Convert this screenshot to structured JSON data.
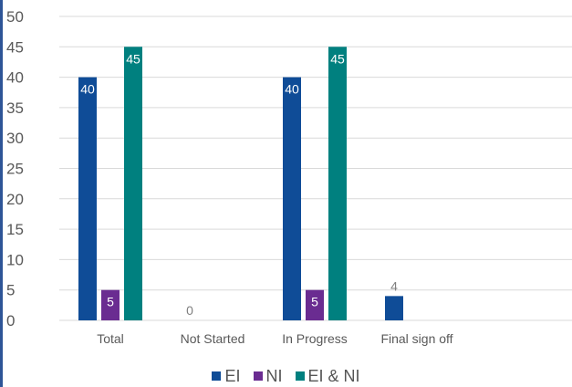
{
  "chart_data": {
    "type": "bar",
    "categories": [
      "Total",
      "Not Started",
      "In Progress",
      "Final sign off"
    ],
    "series": [
      {
        "name": "EI",
        "values": [
          40,
          0,
          40,
          4
        ],
        "color": "#0f4c97"
      },
      {
        "name": "NI",
        "values": [
          5,
          null,
          5,
          null
        ],
        "color": "#6a2c91"
      },
      {
        "name": "EI & NI",
        "values": [
          45,
          null,
          45,
          null
        ],
        "color": "#00807f"
      }
    ],
    "data_labels": [
      {
        "series": 0,
        "category": 0,
        "text": "40",
        "position": "inside-top"
      },
      {
        "series": 1,
        "category": 0,
        "text": "5",
        "position": "inside-top"
      },
      {
        "series": 2,
        "category": 0,
        "text": "45",
        "position": "inside-top"
      },
      {
        "series": 0,
        "category": 1,
        "text": "0",
        "position": "above"
      },
      {
        "series": 0,
        "category": 2,
        "text": "40",
        "position": "inside-top"
      },
      {
        "series": 1,
        "category": 2,
        "text": "5",
        "position": "inside-top"
      },
      {
        "series": 2,
        "category": 2,
        "text": "45",
        "position": "inside-top"
      },
      {
        "series": 0,
        "category": 3,
        "text": "4",
        "position": "above"
      }
    ],
    "yticks": [
      "0",
      "5",
      "10",
      "15",
      "20",
      "25",
      "30",
      "35",
      "40",
      "45",
      "50"
    ],
    "ylim": [
      0,
      50
    ],
    "grid": true,
    "legend_position": "bottom"
  }
}
